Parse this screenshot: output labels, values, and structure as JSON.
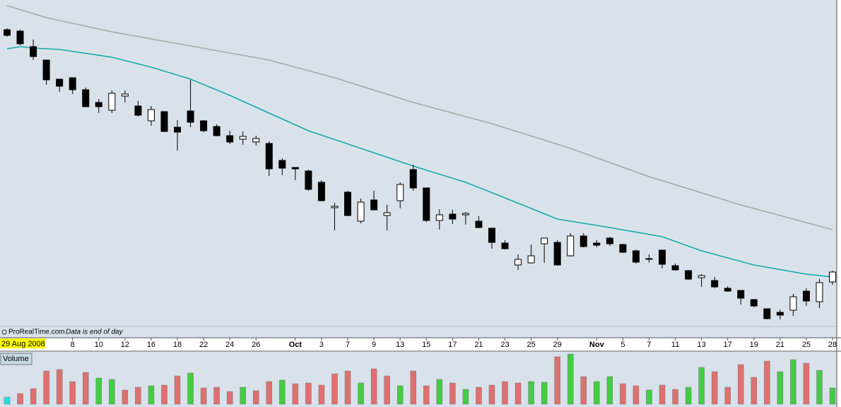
{
  "chart_data": {
    "type": "candlestick",
    "categories": [
      "29 Aug 2008",
      null,
      null,
      null,
      null,
      "8",
      null,
      "10",
      null,
      "12",
      null,
      "16",
      null,
      "18",
      null,
      "22",
      null,
      "24",
      null,
      "26",
      null,
      null,
      "Oct",
      null,
      "3",
      null,
      "7",
      null,
      "9",
      null,
      "13",
      null,
      "15",
      null,
      "17",
      null,
      "21",
      null,
      "23",
      null,
      "25",
      null,
      "29",
      null,
      null,
      "Nov",
      null,
      "5",
      null,
      "7",
      null,
      "11",
      null,
      "13",
      null,
      "17",
      null,
      "19",
      null,
      "21",
      null,
      "25",
      null,
      "28"
    ],
    "open": [
      420,
      418,
      396,
      377,
      350,
      352,
      335,
      317,
      306,
      326,
      312,
      291,
      304,
      282,
      305,
      291,
      283,
      270,
      265,
      261,
      259,
      235,
      225,
      220,
      204,
      168,
      190,
      149,
      179,
      157,
      178,
      222,
      196,
      150,
      159,
      158,
      149,
      139,
      118,
      87,
      90,
      117,
      119,
      100,
      128,
      118,
      125,
      116,
      107,
      95,
      108,
      86,
      79,
      69,
      65,
      54,
      51,
      38,
      25,
      20,
      23,
      50,
      35,
      63
    ],
    "high": [
      422,
      420,
      406,
      377,
      350,
      352,
      338,
      322,
      334,
      334,
      319,
      312,
      304,
      292,
      349,
      292,
      286,
      277,
      276,
      270,
      262,
      238,
      225,
      222,
      207,
      175,
      192,
      181,
      192,
      172,
      204,
      229,
      196,
      166,
      165,
      162,
      156,
      139,
      122,
      102,
      116,
      125,
      122,
      132,
      132,
      122,
      127,
      117,
      109,
      102,
      108,
      89,
      79,
      74,
      70,
      57,
      51,
      39,
      25,
      24,
      46,
      54,
      67,
      79
    ],
    "low": [
      410,
      398,
      377,
      342,
      332,
      329,
      311,
      302,
      302,
      317,
      297,
      284,
      275,
      249,
      282,
      275,
      269,
      258,
      257,
      256,
      213,
      214,
      207,
      192,
      177,
      136,
      156,
      146,
      165,
      136,
      167,
      192,
      148,
      137,
      145,
      144,
      139,
      110,
      109,
      80,
      89,
      90,
      86,
      99,
      112,
      112,
      114,
      104,
      89,
      90,
      82,
      79,
      66,
      56,
      54,
      49,
      31,
      27,
      10,
      10,
      15,
      29,
      26,
      59
    ],
    "close": [
      412,
      400,
      382,
      349,
      340,
      335,
      311,
      311,
      330,
      329,
      299,
      307,
      276,
      275,
      289,
      277,
      270,
      261,
      269,
      266,
      223,
      224,
      223,
      194,
      178,
      170,
      157,
      176,
      165,
      161,
      201,
      196,
      150,
      158,
      152,
      160,
      140,
      119,
      110,
      95,
      100,
      125,
      87,
      128,
      113,
      115,
      117,
      105,
      91,
      96,
      88,
      80,
      67,
      72,
      56,
      50,
      40,
      29,
      11,
      16,
      42,
      36,
      62,
      77
    ],
    "ylim": [
      0,
      462
    ],
    "up_color": "#ffffff",
    "down_color": "#000000",
    "moving_averages": [
      {
        "color": "#a8a8a8",
        "x": [
          0,
          3,
          8,
          14,
          20,
          25,
          31,
          37,
          43,
          49,
          56,
          63
        ],
        "values": [
          454,
          437,
          417,
          397,
          377,
          352,
          317,
          287,
          252,
          212,
          172,
          137
        ]
      },
      {
        "color": "#16aaaa",
        "x": [
          0,
          1,
          2,
          4,
          8,
          11,
          14,
          17,
          20,
          23,
          27,
          31,
          35,
          38,
          42,
          46,
          50,
          53,
          57,
          61,
          63
        ],
        "values": [
          393,
          396,
          394,
          392,
          381,
          367,
          350,
          327,
          302,
          277,
          252,
          227,
          204,
          182,
          152,
          140,
          127,
          107,
          87,
          74,
          70
        ]
      }
    ],
    "volume": {
      "label": "Volume",
      "ylim": [
        0,
        74
      ],
      "values": [
        10,
        15,
        22,
        47,
        49,
        32,
        45,
        37,
        35,
        20,
        24,
        26,
        27,
        40,
        44,
        23,
        24,
        18,
        24,
        19,
        32,
        34,
        29,
        30,
        27,
        43,
        47,
        30,
        50,
        40,
        26,
        47,
        26,
        35,
        30,
        21,
        24,
        27,
        32,
        30,
        32,
        31,
        67,
        71,
        39,
        32,
        39,
        29,
        26,
        20,
        27,
        21,
        24,
        52,
        46,
        24,
        56,
        38,
        61,
        46,
        63,
        58,
        48,
        23
      ],
      "colors": [
        "#22dddd",
        "#e07070",
        "#e07070",
        "#e07070",
        "#e07070",
        "#e07070",
        "#e07070",
        "#44cc44",
        "#44cc44",
        "#e07070",
        "#e07070",
        "#44cc44",
        "#e07070",
        "#e07070",
        "#44cc44",
        "#e07070",
        "#e07070",
        "#e07070",
        "#44cc44",
        "#e07070",
        "#e07070",
        "#44cc44",
        "#e07070",
        "#e07070",
        "#e07070",
        "#e07070",
        "#e07070",
        "#44cc44",
        "#e07070",
        "#e07070",
        "#44cc44",
        "#e07070",
        "#e07070",
        "#44cc44",
        "#e07070",
        "#44cc44",
        "#e07070",
        "#e07070",
        "#e07070",
        "#e07070",
        "#44cc44",
        "#44cc44",
        "#e07070",
        "#44cc44",
        "#e07070",
        "#44cc44",
        "#44cc44",
        "#e07070",
        "#e07070",
        "#44cc44",
        "#e07070",
        "#e07070",
        "#44cc44",
        "#44cc44",
        "#e07070",
        "#e07070",
        "#e07070",
        "#e07070",
        "#e07070",
        "#44cc44",
        "#44cc44",
        "#e07070",
        "#44cc44",
        "#44cc44"
      ]
    },
    "source": "ProRealTime.com",
    "note": "Data is end of day"
  }
}
